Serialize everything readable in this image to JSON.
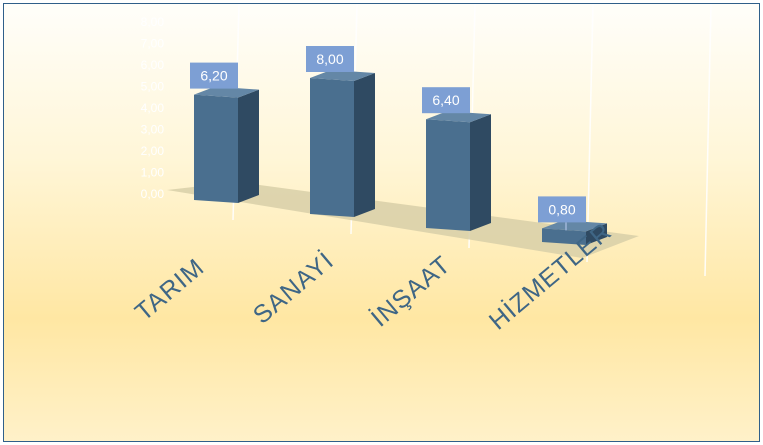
{
  "chart_data": {
    "type": "bar",
    "categories": [
      "TARIM",
      "SANAYİ",
      "İNŞAAT",
      "HİZMETLER"
    ],
    "values": [
      6.2,
      8.0,
      6.4,
      0.8
    ],
    "value_labels": [
      "6,20",
      "8,00",
      "6,40",
      "0,80"
    ],
    "y_ticks": [
      "0,00",
      "1,00",
      "2,00",
      "3,00",
      "4,00",
      "5,00",
      "6,00",
      "7,00",
      "8,00"
    ],
    "ylim": [
      0,
      8
    ],
    "title": "",
    "xlabel": "",
    "ylabel": "",
    "grid": true,
    "legend": "none",
    "colors": {
      "bar_front": "#4a6f8f",
      "bar_side": "#2f4a62",
      "bar_top": "#6487a6",
      "label_box": "#7d9fd4",
      "floor": "#d8cfa8",
      "category_text": "#3f6685"
    }
  }
}
